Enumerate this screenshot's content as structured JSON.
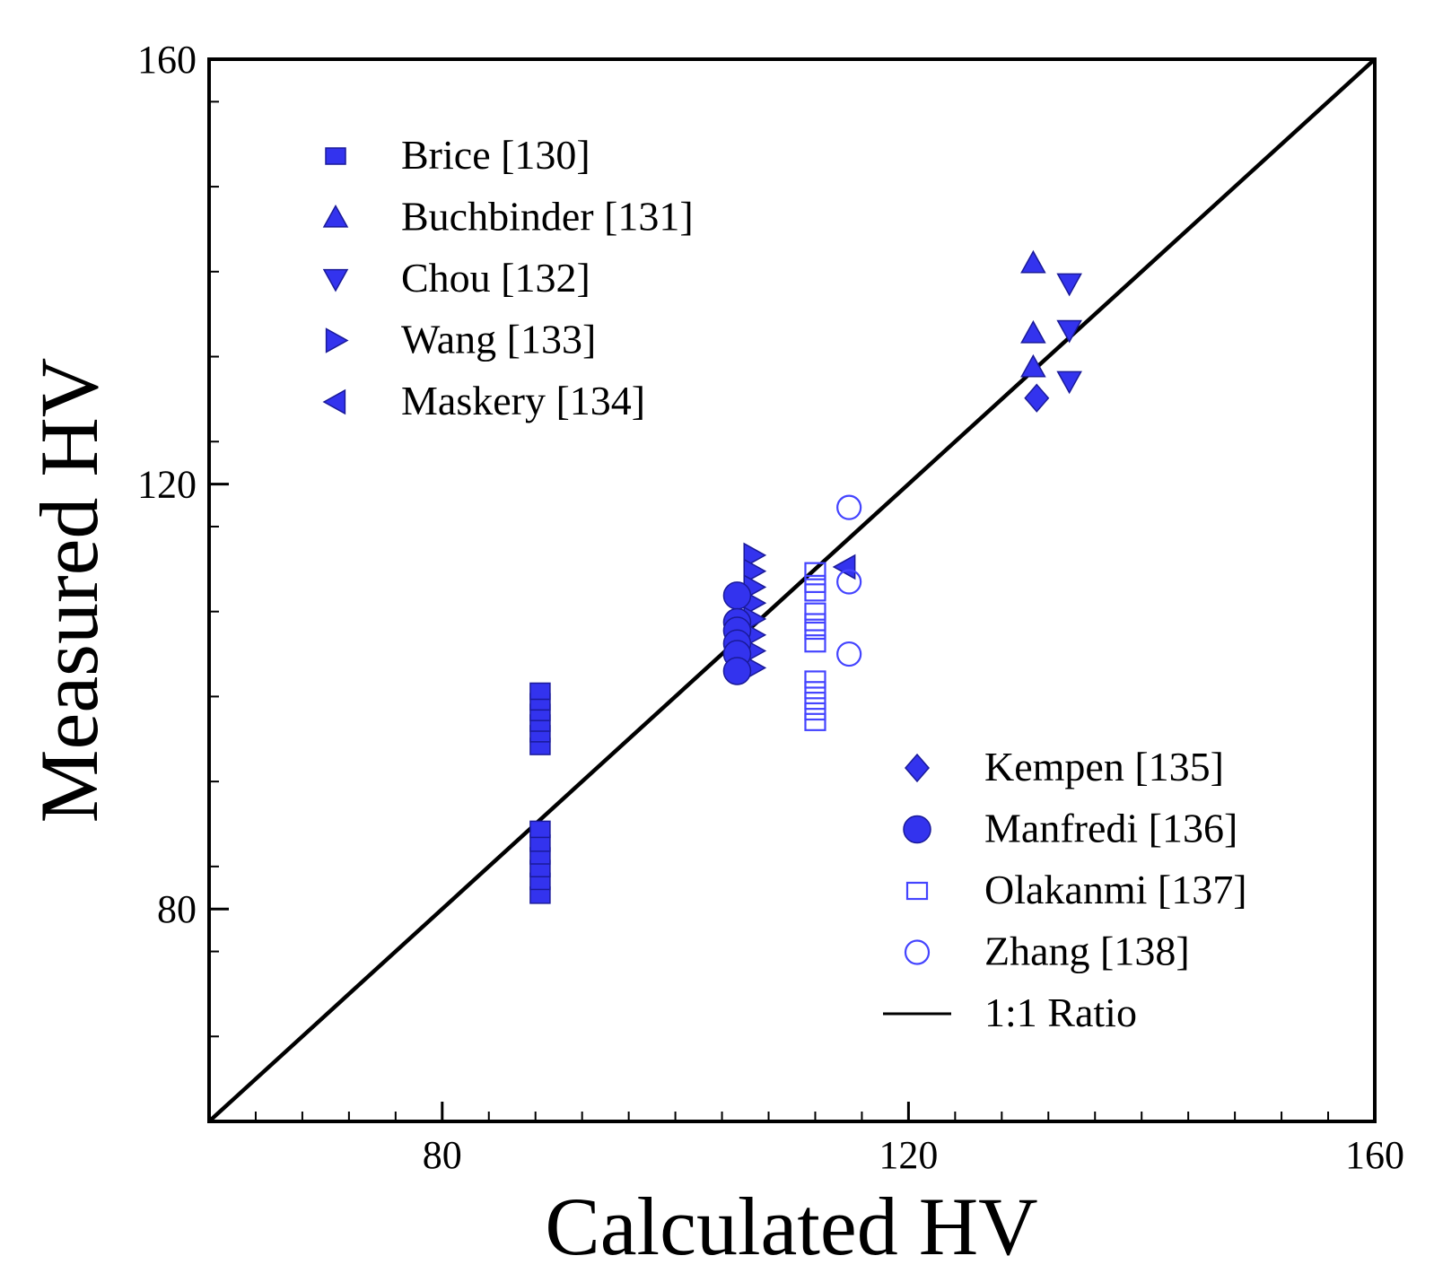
{
  "chart_data": {
    "type": "scatter",
    "title": "",
    "xlabel": "Calculated HV",
    "ylabel": "Measured HV",
    "xlim": [
      60,
      160
    ],
    "ylim": [
      60,
      160
    ],
    "xticks": [
      80,
      120,
      160
    ],
    "yticks": [
      80,
      120,
      160
    ],
    "x_minor_step": 4,
    "y_minor_step": 8,
    "grid": false,
    "colors": {
      "marker": "#3333ee",
      "marker_open": "#4444ff",
      "marker_edge": "#1a1a99",
      "line": "#000000"
    },
    "reference_line": {
      "name": "1:1 Ratio",
      "x": [
        60,
        160
      ],
      "y": [
        60,
        160
      ]
    },
    "series": [
      {
        "name": "Brice [130]",
        "marker": "square",
        "filled": true,
        "points": [
          [
            88.4,
            81.3
          ],
          [
            88.4,
            82.6
          ],
          [
            88.4,
            83.8
          ],
          [
            88.4,
            85.0
          ],
          [
            88.4,
            86.2
          ],
          [
            88.4,
            87.5
          ],
          [
            88.4,
            95.3
          ],
          [
            88.4,
            96.5
          ],
          [
            88.4,
            97.5
          ],
          [
            88.4,
            98.5
          ],
          [
            88.4,
            99.5
          ],
          [
            88.4,
            100.5
          ]
        ]
      },
      {
        "name": "Buchbinder [131]",
        "marker": "triangle-up",
        "filled": true,
        "points": [
          [
            130.7,
            140.8
          ],
          [
            130.7,
            134.2
          ],
          [
            130.7,
            131.0
          ]
        ]
      },
      {
        "name": "Chou [132]",
        "marker": "triangle-down",
        "filled": true,
        "points": [
          [
            133.8,
            138.9
          ],
          [
            133.8,
            134.5
          ],
          [
            133.8,
            129.7
          ]
        ]
      },
      {
        "name": "Wang [133]",
        "marker": "triangle-right",
        "filled": true,
        "points": [
          [
            106.7,
            113.3
          ],
          [
            106.7,
            111.8
          ],
          [
            106.7,
            110.3
          ],
          [
            106.7,
            108.8
          ],
          [
            106.7,
            107.3
          ],
          [
            106.7,
            105.8
          ],
          [
            106.7,
            104.3
          ],
          [
            106.7,
            102.7
          ]
        ]
      },
      {
        "name": "Maskery [134]",
        "marker": "triangle-left",
        "filled": true,
        "points": [
          [
            114.6,
            112.2
          ]
        ]
      },
      {
        "name": "Kempen [135]",
        "marker": "diamond",
        "filled": true,
        "points": [
          [
            131.0,
            128.1
          ]
        ]
      },
      {
        "name": "Manfredi [136]",
        "marker": "circle",
        "filled": true,
        "points": [
          [
            105.3,
            109.5
          ],
          [
            105.3,
            107.0
          ],
          [
            105.3,
            106.2
          ],
          [
            105.3,
            105.0
          ],
          [
            105.3,
            104.0
          ],
          [
            105.3,
            102.4
          ]
        ]
      },
      {
        "name": "Olakanmi [137]",
        "marker": "square",
        "filled": false,
        "points": [
          [
            112.0,
            111.8
          ],
          [
            112.0,
            110.6
          ],
          [
            112.0,
            109.8
          ],
          [
            112.0,
            108.0
          ],
          [
            112.0,
            107.0
          ],
          [
            112.0,
            106.2
          ],
          [
            112.0,
            105.0
          ],
          [
            112.0,
            101.6
          ],
          [
            112.0,
            100.6
          ],
          [
            112.0,
            99.6
          ],
          [
            112.0,
            98.6
          ],
          [
            112.0,
            97.6
          ]
        ]
      },
      {
        "name": "Zhang [138]",
        "marker": "circle",
        "filled": false,
        "points": [
          [
            114.9,
            117.8
          ],
          [
            114.9,
            110.8
          ],
          [
            114.9,
            104.0
          ]
        ]
      }
    ],
    "legend_top_left": [
      "Brice [130]",
      "Buchbinder [131]",
      "Chou [132]",
      "Wang [133]",
      "Maskery [134]"
    ],
    "legend_bottom_right": [
      "Kempen [135]",
      "Manfredi [136]",
      "Olakanmi [137]",
      "Zhang [138]",
      "1:1 Ratio"
    ]
  }
}
